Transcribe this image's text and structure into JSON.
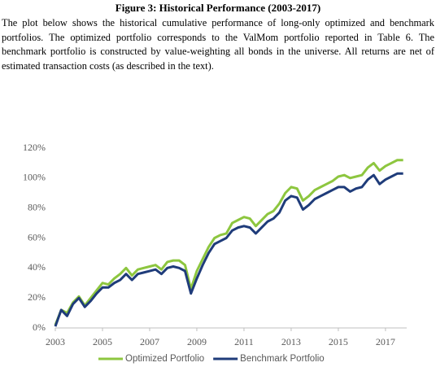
{
  "figure": {
    "title": "Figure 3: Historical Performance (2003-2017)",
    "caption": "The plot below shows the historical cumulative performance of long-only optimized and benchmark portfolios. The optimized portfolio corresponds to the ValMom portfolio reported in Table 6. The benchmark portfolio is constructed by value-weighting all bonds in the universe. All returns are net of estimated transaction costs (as described in the text)."
  },
  "chart_data": {
    "type": "line",
    "x": [
      2003.0,
      2003.25,
      2003.5,
      2003.75,
      2004.0,
      2004.25,
      2004.5,
      2004.75,
      2005.0,
      2005.25,
      2005.5,
      2005.75,
      2006.0,
      2006.25,
      2006.5,
      2006.75,
      2007.0,
      2007.25,
      2007.5,
      2007.75,
      2008.0,
      2008.25,
      2008.5,
      2008.75,
      2009.0,
      2009.25,
      2009.5,
      2009.75,
      2010.0,
      2010.25,
      2010.5,
      2010.75,
      2011.0,
      2011.25,
      2011.5,
      2011.75,
      2012.0,
      2012.25,
      2012.5,
      2012.75,
      2013.0,
      2013.25,
      2013.5,
      2013.75,
      2014.0,
      2014.25,
      2014.5,
      2014.75,
      2015.0,
      2015.25,
      2015.5,
      2015.75,
      2016.0,
      2016.25,
      2016.5,
      2016.75,
      2017.0,
      2017.25,
      2017.5,
      2017.75
    ],
    "series": [
      {
        "name": "Optimized Portfolio",
        "color": "#8dc63f",
        "values": [
          2,
          12,
          10,
          17,
          21,
          15,
          20,
          25,
          30,
          29,
          33,
          36,
          40,
          35,
          39,
          40,
          41,
          42,
          39,
          44,
          45,
          45,
          42,
          26,
          38,
          46,
          54,
          60,
          62,
          63,
          70,
          72,
          74,
          73,
          68,
          72,
          76,
          78,
          83,
          90,
          94,
          93,
          85,
          88,
          92,
          94,
          96,
          98,
          101,
          102,
          100,
          101,
          102,
          107,
          110,
          105,
          108,
          110,
          112,
          112
        ]
      },
      {
        "name": "Benchmark Portfolio",
        "color": "#1f3c7a",
        "values": [
          1,
          12,
          8,
          16,
          20,
          14,
          18,
          23,
          27,
          27,
          30,
          32,
          36,
          32,
          36,
          37,
          38,
          39,
          36,
          40,
          41,
          40,
          38,
          23,
          33,
          42,
          50,
          56,
          58,
          60,
          65,
          67,
          68,
          67,
          63,
          67,
          71,
          73,
          77,
          85,
          88,
          87,
          79,
          82,
          86,
          88,
          90,
          92,
          94,
          94,
          91,
          93,
          94,
          99,
          102,
          96,
          99,
          101,
          103,
          103
        ]
      }
    ],
    "xlim": [
      2003,
      2017.9
    ],
    "xticks": [
      2003,
      2005,
      2007,
      2009,
      2011,
      2013,
      2015,
      2017
    ],
    "ylim": [
      0,
      120
    ],
    "yticks": [
      {
        "value": 0,
        "label": "0%"
      },
      {
        "value": 20,
        "label": "20%"
      },
      {
        "value": 40,
        "label": "40%"
      },
      {
        "value": 60,
        "label": "60%"
      },
      {
        "value": 80,
        "label": "80%"
      },
      {
        "value": 100,
        "label": "100%"
      },
      {
        "value": 120,
        "label": "120%"
      }
    ],
    "grid": false
  }
}
